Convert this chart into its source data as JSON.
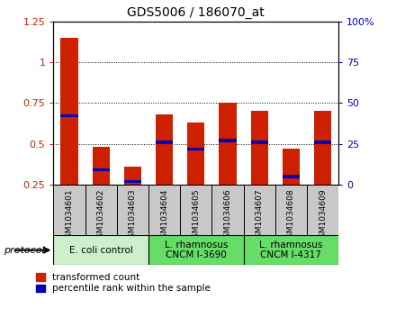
{
  "title": "GDS5006 / 186070_at",
  "samples": [
    "GSM1034601",
    "GSM1034602",
    "GSM1034603",
    "GSM1034604",
    "GSM1034605",
    "GSM1034606",
    "GSM1034607",
    "GSM1034608",
    "GSM1034609"
  ],
  "red_values": [
    1.15,
    0.48,
    0.36,
    0.68,
    0.63,
    0.75,
    0.7,
    0.47,
    0.7
  ],
  "blue_values": [
    0.67,
    0.34,
    0.27,
    0.51,
    0.47,
    0.52,
    0.51,
    0.3,
    0.51
  ],
  "bar_bottom": 0.25,
  "ylim": [
    0.25,
    1.25
  ],
  "yticks": [
    0.25,
    0.5,
    0.75,
    1.0,
    1.25
  ],
  "ytick_labels": [
    "0.25",
    "0.5",
    "0.75",
    "1",
    "1.25"
  ],
  "right_ytick_vals": [
    0.25,
    0.4375,
    0.625,
    0.8125,
    1.0
  ],
  "right_ytick_labels": [
    "0",
    "25",
    "50",
    "75",
    "100%"
  ],
  "grid_yticks": [
    0.5,
    0.75,
    1.0
  ],
  "group_starts": [
    0,
    3,
    6
  ],
  "group_ends": [
    3,
    6,
    9
  ],
  "group_labels": [
    "E. coli control",
    "L. rhamnosus\nCNCM I-3690",
    "L. rhamnosus\nCNCM I-4317"
  ],
  "group_colors": [
    "#ccf0cc",
    "#66dd66",
    "#66dd66"
  ],
  "bar_color": "#cc2000",
  "blue_color": "#0000bb",
  "bar_width": 0.55,
  "legend_items": [
    "transformed count",
    "percentile rank within the sample"
  ],
  "protocol_label": "protocol",
  "bg_color": "#c8c8c8",
  "plot_bg": "#ffffff"
}
